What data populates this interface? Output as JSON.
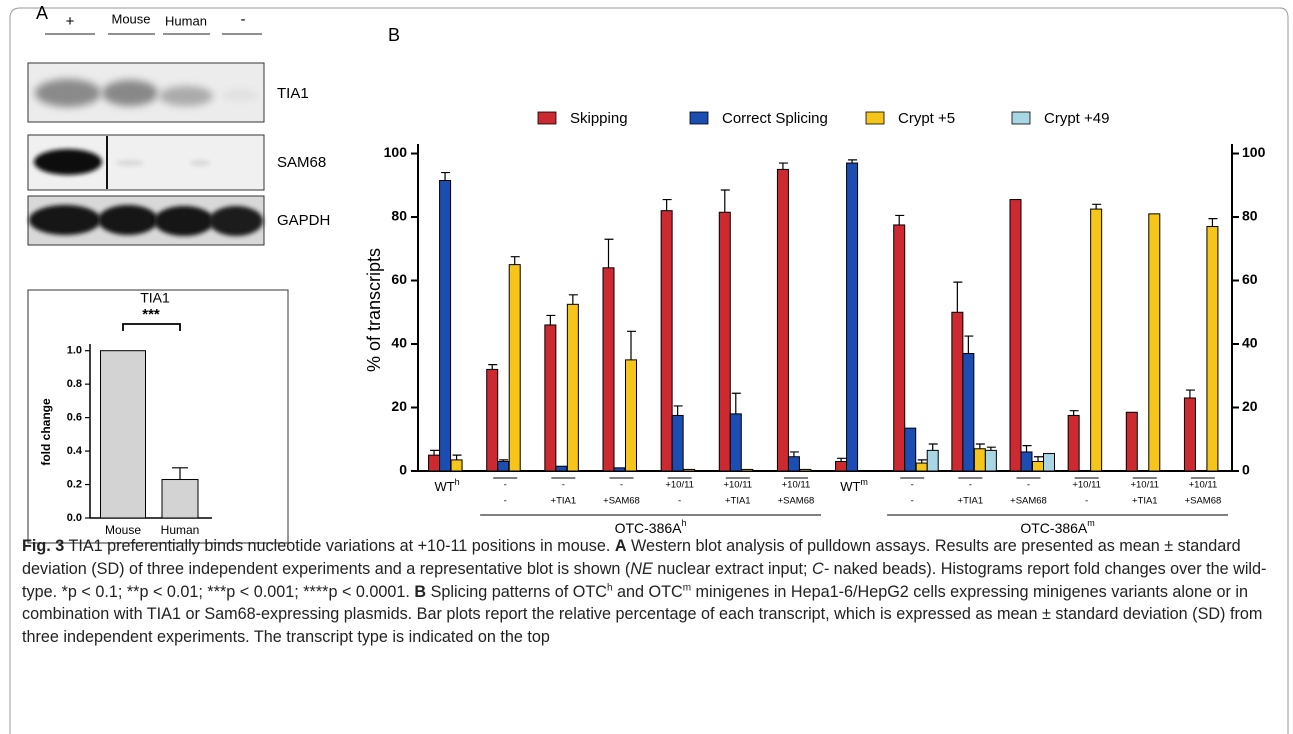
{
  "panel_labels": [
    "A",
    "B"
  ],
  "blot": {
    "lanes": [
      "+",
      "Mouse",
      "Human",
      "-"
    ],
    "rows": [
      "TIA1",
      "SAM68",
      "GAPDH"
    ]
  },
  "chart_data": [
    {
      "type": "bar",
      "title": "TIA1",
      "ylabel": "fold change",
      "significance": "***",
      "categories": [
        "Mouse",
        "Human"
      ],
      "values": [
        1.0,
        0.23
      ],
      "errors": [
        null,
        0.07
      ],
      "color": "#d3d3d3",
      "ylim": [
        0,
        1.04
      ],
      "yticks": [
        {
          "value": 0,
          "label": "0.0"
        },
        0.2,
        0.4,
        0.6,
        0.8,
        {
          "value": 1,
          "label": "1.0"
        }
      ]
    },
    {
      "type": "bar",
      "ylabel": "% of transcripts",
      "categories": [
        {
          "lines": [
            "WT"
          ],
          "sup": "h"
        },
        {
          "lines": [
            "-",
            "-"
          ]
        },
        {
          "lines": [
            "-",
            "+TIA1"
          ]
        },
        {
          "lines": [
            "-",
            "+SAM68"
          ]
        },
        {
          "lines": [
            "+10/11",
            "-"
          ]
        },
        {
          "lines": [
            "+10/11",
            "+TIA1"
          ]
        },
        {
          "lines": [
            "+10/11",
            "+SAM68"
          ]
        },
        {
          "lines": [
            "WT"
          ],
          "sup": "m"
        },
        {
          "lines": [
            "-",
            "-"
          ]
        },
        {
          "lines": [
            "-",
            "+TIA1"
          ]
        },
        {
          "lines": [
            "-",
            "+SAM68"
          ]
        },
        {
          "lines": [
            "+10/11",
            "-"
          ]
        },
        {
          "lines": [
            "+10/11",
            "+TIA1"
          ]
        },
        {
          "lines": [
            "+10/11",
            "+SAM68"
          ]
        }
      ],
      "groups": [
        {
          "label": "OTC-386A",
          "sup": "h"
        },
        {
          "label": "OTC-386A",
          "sup": "m"
        }
      ],
      "series": [
        {
          "name": "Skipping",
          "color": "#cc2a30",
          "values": [
            5,
            32,
            46,
            64,
            82,
            81.5,
            95,
            3,
            77.5,
            50,
            85.5,
            17.5,
            18.5,
            23
          ],
          "errors": [
            1.5,
            1.5,
            3,
            9,
            3.5,
            7,
            2,
            1,
            3,
            9.5,
            null,
            1.5,
            null,
            2.5
          ]
        },
        {
          "name": "Correct Splicing",
          "color": "#1c4db3",
          "values": [
            91.5,
            3,
            1.5,
            1,
            17.5,
            18,
            4.5,
            97,
            13.5,
            37,
            6,
            null,
            null,
            null
          ],
          "errors": [
            2.5,
            0.5,
            null,
            null,
            3,
            6.5,
            1.5,
            1,
            null,
            5.5,
            2,
            null,
            null,
            null
          ]
        },
        {
          "name": "Crypt +5",
          "color": "#f6c51a",
          "values": [
            3.5,
            65,
            52.5,
            35,
            0.5,
            0.5,
            0.5,
            null,
            2.5,
            7,
            3,
            82.5,
            81,
            77
          ],
          "errors": [
            1.5,
            2.5,
            3,
            9,
            null,
            null,
            null,
            null,
            1,
            1.5,
            1.5,
            1.5,
            null,
            2.5
          ]
        },
        {
          "name": "Crypt +49",
          "color": "#a8d6e4",
          "values": [
            null,
            null,
            null,
            null,
            null,
            null,
            null,
            null,
            6.5,
            6.5,
            5.5,
            null,
            null,
            null
          ],
          "errors": [
            null,
            null,
            null,
            null,
            null,
            null,
            null,
            null,
            2,
            1,
            null,
            null,
            null,
            null
          ]
        }
      ],
      "ylim": [
        0,
        103
      ],
      "yticks": [
        0,
        20,
        40,
        60,
        80,
        100
      ],
      "y2lim": [
        0,
        103
      ],
      "y2ticks": [
        0,
        20,
        40,
        60,
        80,
        100
      ]
    }
  ],
  "caption": [
    {
      "text": "Fig. 3",
      "style": "bold"
    },
    {
      "text": " TIA1 preferentially binds nucleotide variations at +10-11 positions in mouse. "
    },
    {
      "text": "A",
      "style": "bold"
    },
    {
      "text": " Western blot analysis of pulldown assays. Results are presented as mean ± standard deviation (SD) of three independent experiments and a representative blot is shown ("
    },
    {
      "text": "NE",
      "style": "italic"
    },
    {
      "text": " nuclear extract input; "
    },
    {
      "text": "C-",
      "style": "italic"
    },
    {
      "text": " naked beads). Histograms report fold changes over the wild-type. *p < 0.1; **p < 0.01; ***p < 0.001; ****p < 0.0001. "
    },
    {
      "text": "B",
      "style": "bold"
    },
    {
      "text": " Splicing patterns of OTC"
    },
    {
      "text": "h",
      "style": "sup"
    },
    {
      "text": " and OTC"
    },
    {
      "text": "m",
      "style": "sup"
    },
    {
      "text": " minigenes in Hepa1-6/HepG2 cells expressing minigenes variants alone or in combination with TIA1 or Sam68-expressing plasmids. Bar plots report the relative percentage of each transcript, which is expressed as mean ± standard deviation (SD) from three independent experiments. The transcript type is indicated on the top"
    }
  ]
}
